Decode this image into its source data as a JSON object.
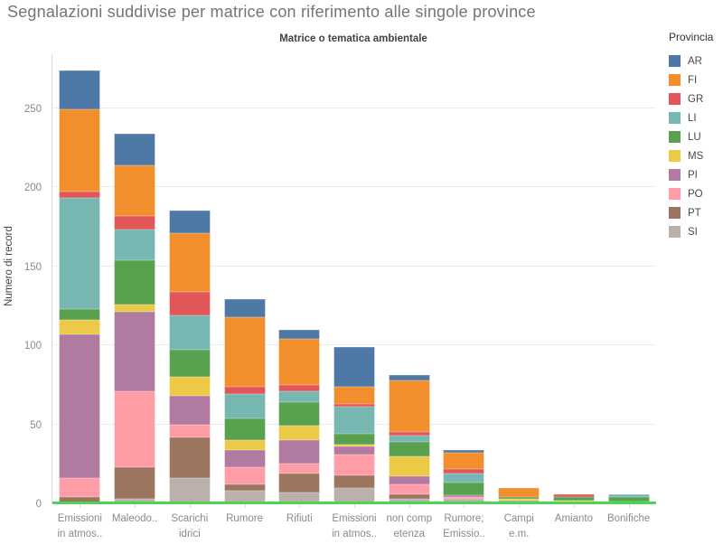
{
  "title": "Segnalazioni suddivise per matrice con riferimento alle singole province",
  "subtitle": "Matrice o tematica ambientale",
  "y_axis": {
    "title": "Numero di record",
    "ticks": [
      0,
      50,
      100,
      150,
      200,
      250
    ]
  },
  "legend": {
    "title": "Provincia",
    "items": [
      {
        "label": "AR",
        "color": "#4e79a7"
      },
      {
        "label": "FI",
        "color": "#f28e2b"
      },
      {
        "label": "GR",
        "color": "#e15759"
      },
      {
        "label": "LI",
        "color": "#76b7b2"
      },
      {
        "label": "LU",
        "color": "#59a14f"
      },
      {
        "label": "MS",
        "color": "#edc948"
      },
      {
        "label": "PI",
        "color": "#b07aa1"
      },
      {
        "label": "PO",
        "color": "#ff9da7"
      },
      {
        "label": "PT",
        "color": "#9c755f"
      },
      {
        "label": "SI",
        "color": "#bab0ac"
      }
    ]
  },
  "chart_data": {
    "type": "bar",
    "stacked": true,
    "title": "Segnalazioni suddivise per matrice con riferimento alle singole province",
    "xlabel": "Matrice o tematica ambientale",
    "ylabel": "Numero di record",
    "ylim": [
      0,
      284
    ],
    "grid": "on",
    "legend_position": "right",
    "zero_line_color": "#4ed455",
    "categories": [
      "Emissioni\nin atmos..",
      "Maleodo..",
      "Scarichi\nidrici",
      "Rumore",
      "Rifiuti",
      "Emissioni\nin atmos..",
      "non comp\netenza",
      "Rumore;\nEmissio..",
      "Campi\ne.m.",
      "Amianto",
      "Bonifiche"
    ],
    "series": [
      {
        "name": "AR",
        "color": "#4e79a7",
        "values": [
          25,
          20,
          14,
          11,
          6,
          25,
          3,
          2,
          0,
          0,
          0
        ]
      },
      {
        "name": "FI",
        "color": "#f28e2b",
        "values": [
          52,
          32,
          37,
          44,
          29,
          11,
          33,
          10,
          6,
          0,
          0
        ]
      },
      {
        "name": "GR",
        "color": "#e15759",
        "values": [
          4,
          9,
          15,
          5,
          4,
          2,
          2,
          3,
          0,
          2,
          0
        ]
      },
      {
        "name": "LI",
        "color": "#76b7b2",
        "values": [
          70,
          19,
          22,
          15,
          7,
          17,
          4,
          6,
          0,
          0,
          2
        ]
      },
      {
        "name": "LU",
        "color": "#59a14f",
        "values": [
          7,
          28,
          17,
          14,
          15,
          7,
          9,
          8,
          1,
          2,
          3
        ]
      },
      {
        "name": "MS",
        "color": "#edc948",
        "values": [
          9,
          5,
          12,
          6,
          9,
          1,
          13,
          0,
          1,
          1,
          0
        ]
      },
      {
        "name": "PI",
        "color": "#b07aa1",
        "values": [
          91,
          50,
          18,
          11,
          15,
          5,
          5,
          1,
          1,
          1,
          0
        ]
      },
      {
        "name": "PO",
        "color": "#ff9da7",
        "values": [
          12,
          48,
          8,
          11,
          6,
          13,
          6,
          1,
          1,
          0,
          1
        ]
      },
      {
        "name": "PT",
        "color": "#9c755f",
        "values": [
          4,
          20,
          26,
          4,
          12,
          8,
          3,
          0,
          0,
          0,
          0
        ]
      },
      {
        "name": "SI",
        "color": "#bab0ac",
        "values": [
          0,
          3,
          16,
          8,
          7,
          10,
          3,
          3,
          0,
          0,
          0
        ]
      }
    ],
    "totals": [
      274,
      234,
      185,
      129,
      110,
      99,
      81,
      34,
      10,
      6,
      6
    ]
  }
}
